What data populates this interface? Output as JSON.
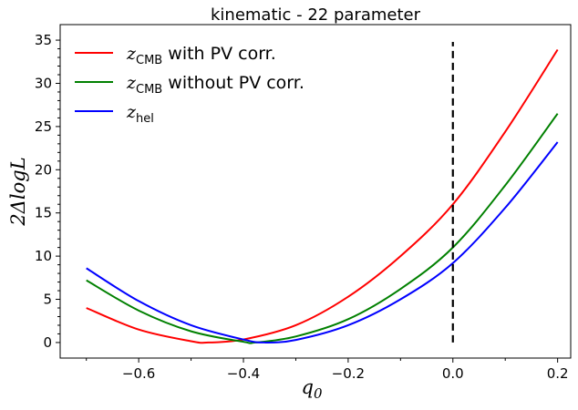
{
  "chart_data": {
    "type": "line",
    "title": "kinematic - 22 parameter",
    "xlabel": "q",
    "xlabel_sub": "0",
    "ylabel": "2ΔlogL",
    "xlim": [
      -0.75,
      0.225
    ],
    "ylim": [
      -1.8,
      36.8
    ],
    "xticks": [
      -0.6,
      -0.4,
      -0.2,
      0.0,
      0.2
    ],
    "xtick_labels": [
      "−0.6",
      "−0.4",
      "−0.2",
      "0.0",
      "0.2"
    ],
    "yticks": [
      0,
      5,
      10,
      15,
      20,
      25,
      30,
      35
    ],
    "ytick_labels": [
      "0",
      "5",
      "10",
      "15",
      "20",
      "25",
      "30",
      "35"
    ],
    "legend_position": "upper-left",
    "series": [
      {
        "name": "z_CMB with PV corr.",
        "legend_main": "z",
        "legend_sub": "CMB",
        "legend_rest": " with PV corr.",
        "color": "#ff0000",
        "x": [
          -0.7,
          -0.6,
          -0.5,
          -0.467,
          -0.4,
          -0.3,
          -0.2,
          -0.1,
          0.0,
          0.1,
          0.2
        ],
        "y": [
          4.0,
          1.5,
          0.15,
          0.0,
          0.35,
          2.0,
          5.3,
          10.0,
          16.0,
          24.4,
          33.9
        ]
      },
      {
        "name": "z_CMB without PV corr.",
        "legend_main": "z",
        "legend_sub": "CMB",
        "legend_rest": " without PV corr.",
        "color": "#008000",
        "x": [
          -0.7,
          -0.6,
          -0.5,
          -0.4,
          -0.377,
          -0.3,
          -0.2,
          -0.1,
          0.0,
          0.1,
          0.2
        ],
        "y": [
          7.2,
          3.7,
          1.3,
          0.08,
          0.0,
          0.7,
          2.7,
          6.2,
          11.0,
          18.2,
          26.5
        ]
      },
      {
        "name": "z_hel",
        "legend_main": "z",
        "legend_sub": "hel",
        "legend_rest": "",
        "color": "#0000ff",
        "x": [
          -0.7,
          -0.6,
          -0.5,
          -0.4,
          -0.36,
          -0.3,
          -0.2,
          -0.1,
          0.0,
          0.1,
          0.2
        ],
        "y": [
          8.6,
          4.8,
          2.0,
          0.35,
          0.0,
          0.3,
          2.0,
          5.0,
          9.2,
          15.6,
          23.2
        ]
      }
    ],
    "annotations": [
      {
        "type": "vline",
        "x": 0.0,
        "y_from": 0.0,
        "y_to": 34.8,
        "style": "dashed",
        "color": "#000000"
      }
    ]
  }
}
